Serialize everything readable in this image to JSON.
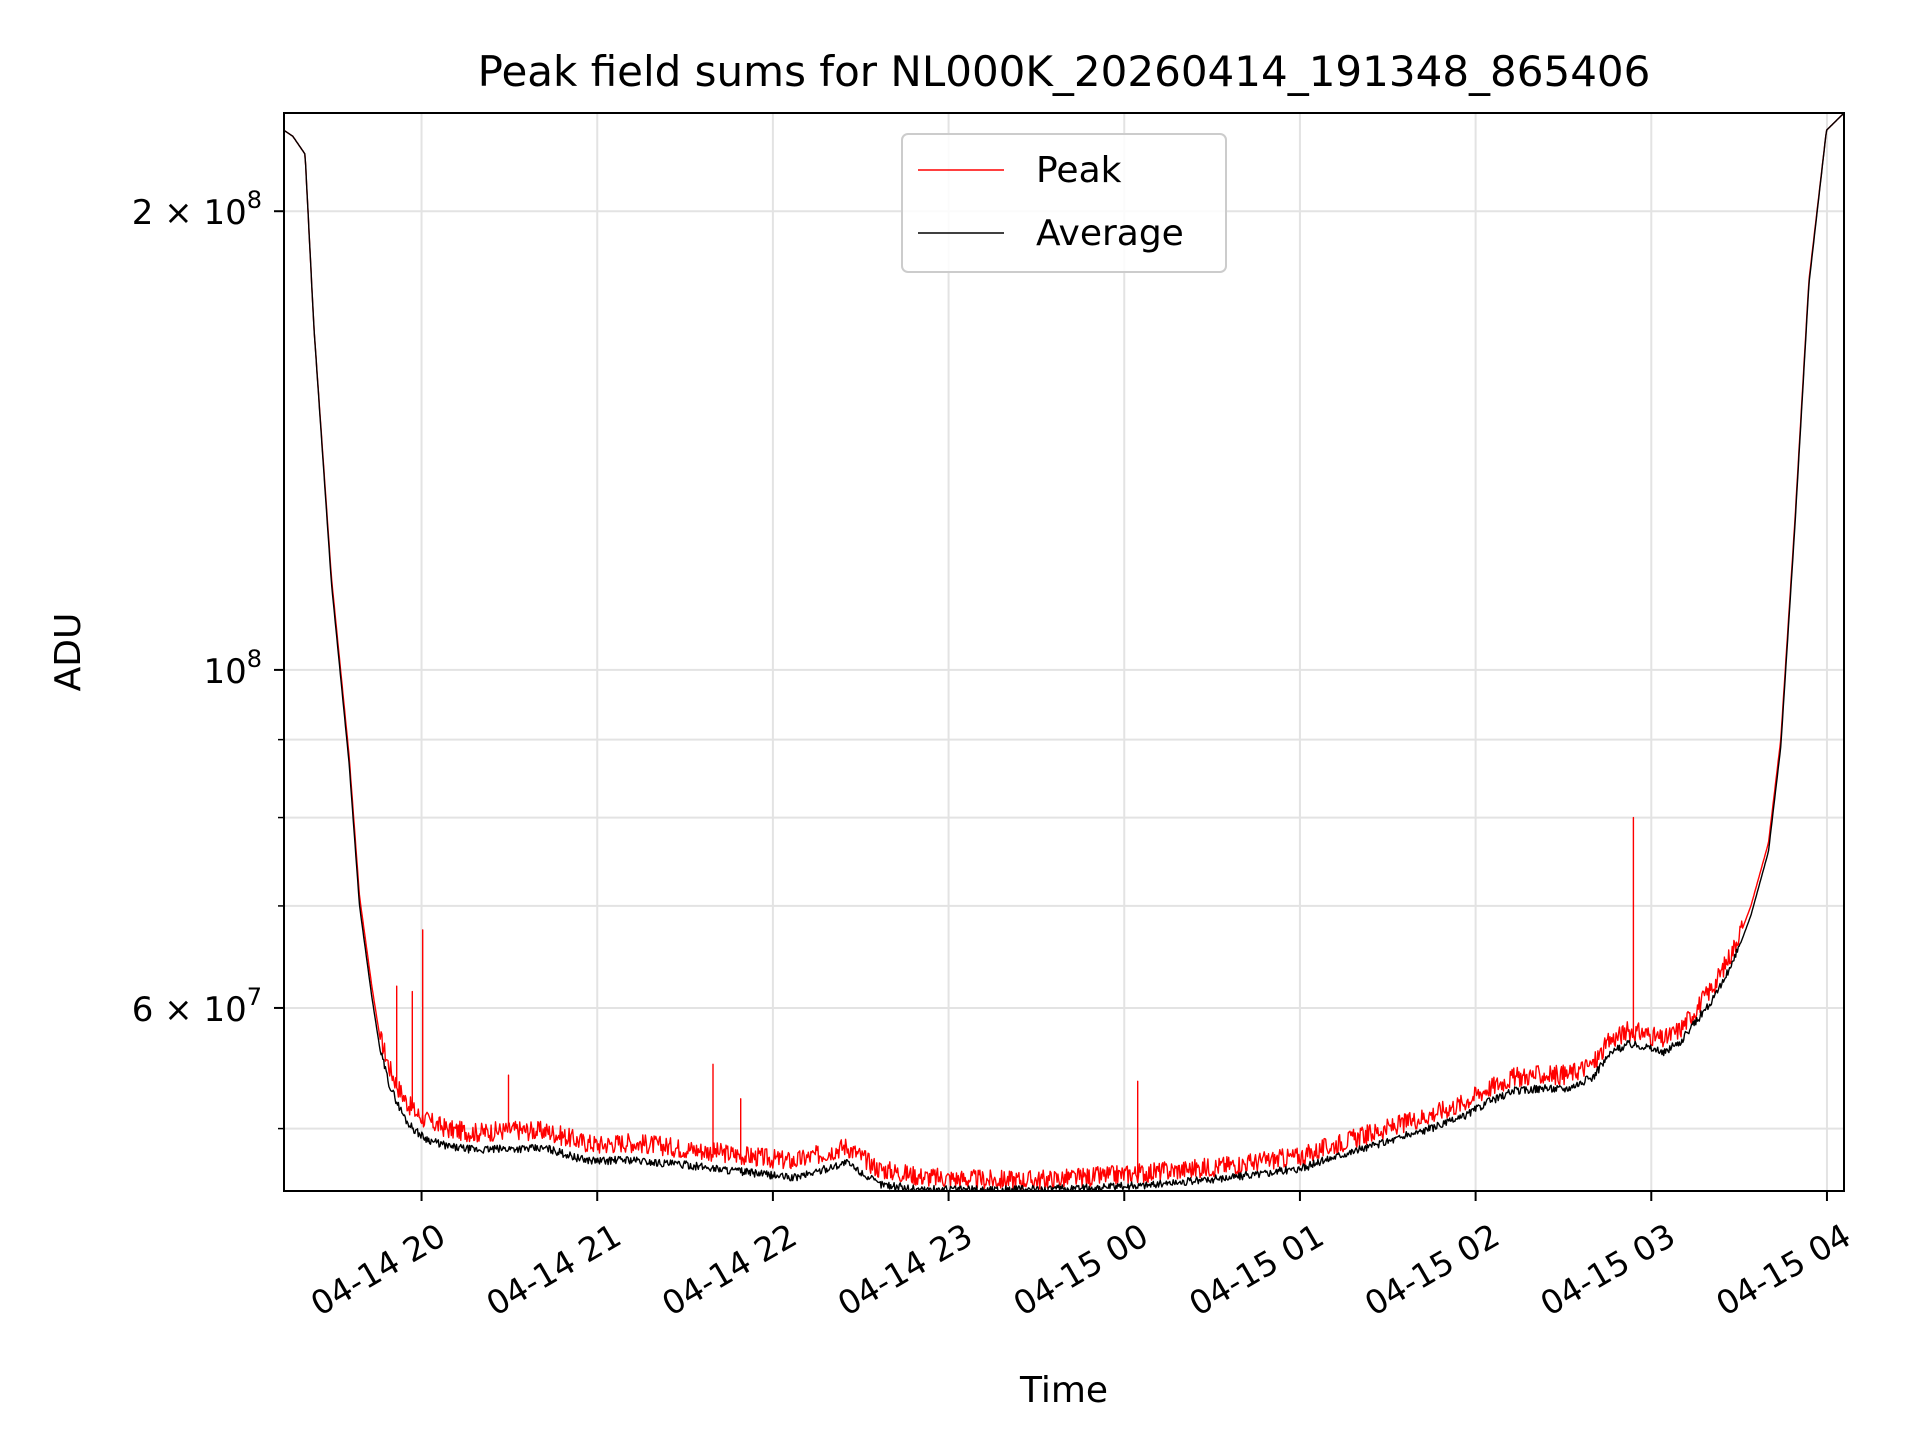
{
  "chart_data": {
    "type": "line",
    "title": "Peak field sums for NL000K_20260414_191348_865406",
    "xlabel": "Time",
    "ylabel": "ADU",
    "yscale": "log",
    "grid": true,
    "legend_position": "upper-center",
    "x_unit": "hours since 2026-04-14 19:13",
    "xlim": [
      0,
      8.88
    ],
    "ylim": [
      45500000,
      232000000
    ],
    "x_ticks": [
      {
        "label": "04-14 20",
        "x": 0.783
      },
      {
        "label": "04-14 21",
        "x": 1.783
      },
      {
        "label": "04-14 22",
        "x": 2.783
      },
      {
        "label": "04-14 23",
        "x": 3.783
      },
      {
        "label": "04-15 00",
        "x": 4.783
      },
      {
        "label": "04-15 01",
        "x": 5.783
      },
      {
        "label": "04-15 02",
        "x": 6.783
      },
      {
        "label": "04-15 03",
        "x": 7.783
      },
      {
        "label": "04-15 04",
        "x": 8.783
      }
    ],
    "y_ticks": [
      {
        "value": 200000000,
        "base": "2 × 10",
        "exp": "8"
      },
      {
        "value": 100000000,
        "base": "10",
        "exp": "8"
      },
      {
        "value": 60000000,
        "base": "6 × 10",
        "exp": "7"
      }
    ],
    "y_minor_ticks": [
      50000000,
      70000000,
      80000000,
      90000000
    ],
    "series": [
      {
        "name": "Peak",
        "color": "#ff0000",
        "x": [
          0,
          0.05,
          0.12,
          0.17,
          0.27,
          0.37,
          0.43,
          0.5,
          0.55,
          0.6,
          0.65,
          0.7,
          0.75,
          0.8,
          0.85,
          0.95,
          1.1,
          1.3,
          1.5,
          1.7,
          1.8,
          1.95,
          2.1,
          2.3,
          2.5,
          2.7,
          2.9,
          3.05,
          3.2,
          3.38,
          3.55,
          3.65,
          3.8,
          4.0,
          4.3,
          4.6,
          4.9,
          5.2,
          5.5,
          5.8,
          6.0,
          6.2,
          6.4,
          6.55,
          6.7,
          6.85,
          7.0,
          7.15,
          7.3,
          7.45,
          7.55,
          7.65,
          7.75,
          7.85,
          7.95,
          8.05,
          8.15,
          8.25,
          8.35,
          8.45,
          8.52,
          8.6,
          8.68,
          8.78,
          8.88
        ],
        "values": [
          226000000,
          224000000,
          218000000,
          168000000,
          115000000,
          88000000,
          71000000,
          62000000,
          57000000,
          54500000,
          52900000,
          51700000,
          50900000,
          50400000,
          50100000,
          49600000,
          49400000,
          49600000,
          49500000,
          48700000,
          48500000,
          48700000,
          48500000,
          48200000,
          47900000,
          47600000,
          47300000,
          47800000,
          48400000,
          46800000,
          46400000,
          46200000,
          46100000,
          46000000,
          46000000,
          46200000,
          46500000,
          46800000,
          47200000,
          47700000,
          48600000,
          49400000,
          50200000,
          50900000,
          51600000,
          52800000,
          53700000,
          53900000,
          53900000,
          54800000,
          56800000,
          57600000,
          57400000,
          56800000,
          57800000,
          59800000,
          62000000,
          65200000,
          70000000,
          77000000,
          90000000,
          125000000,
          180000000,
          226000000,
          232000000
        ],
        "spikes": [
          {
            "x": 0.64,
            "value": 62000000
          },
          {
            "x": 0.73,
            "value": 61500000
          },
          {
            "x": 0.79,
            "value": 67500000
          },
          {
            "x": 1.28,
            "value": 54200000
          },
          {
            "x": 2.44,
            "value": 55100000
          },
          {
            "x": 2.6,
            "value": 52300000
          },
          {
            "x": 4.86,
            "value": 53700000
          },
          {
            "x": 7.68,
            "value": 80000000
          }
        ]
      },
      {
        "name": "Average",
        "color": "#000000",
        "x": [
          0,
          0.05,
          0.12,
          0.17,
          0.27,
          0.37,
          0.43,
          0.5,
          0.55,
          0.6,
          0.65,
          0.7,
          0.75,
          0.8,
          0.85,
          0.95,
          1.1,
          1.3,
          1.5,
          1.7,
          1.8,
          1.95,
          2.1,
          2.3,
          2.5,
          2.7,
          2.9,
          3.05,
          3.2,
          3.38,
          3.55,
          3.65,
          3.8,
          4.0,
          4.3,
          4.6,
          4.9,
          5.2,
          5.5,
          5.8,
          6.0,
          6.2,
          6.4,
          6.55,
          6.7,
          6.85,
          7.0,
          7.15,
          7.3,
          7.45,
          7.55,
          7.65,
          7.75,
          7.85,
          7.95,
          8.05,
          8.15,
          8.25,
          8.35,
          8.45,
          8.52,
          8.6,
          8.68,
          8.78,
          8.88
        ],
        "values": [
          226000000,
          224000000,
          218000000,
          168000000,
          114000000,
          87000000,
          70000000,
          61000000,
          56000000,
          53300000,
          51700000,
          50400000,
          49700000,
          49200000,
          48900000,
          48500000,
          48300000,
          48400000,
          48400000,
          47600000,
          47500000,
          47600000,
          47400000,
          47200000,
          46900000,
          46600000,
          46300000,
          46800000,
          47400000,
          45900000,
          45600000,
          45500000,
          45500000,
          45500000,
          45500000,
          45600000,
          45800000,
          46100000,
          46500000,
          47000000,
          47900000,
          48600000,
          49400000,
          50000000,
          50700000,
          51900000,
          52800000,
          53000000,
          53000000,
          53900000,
          55900000,
          56700000,
          56500000,
          55900000,
          56900000,
          58900000,
          61000000,
          64200000,
          69000000,
          76000000,
          89000000,
          124000000,
          179000000,
          226000000,
          232000000
        ]
      }
    ]
  }
}
